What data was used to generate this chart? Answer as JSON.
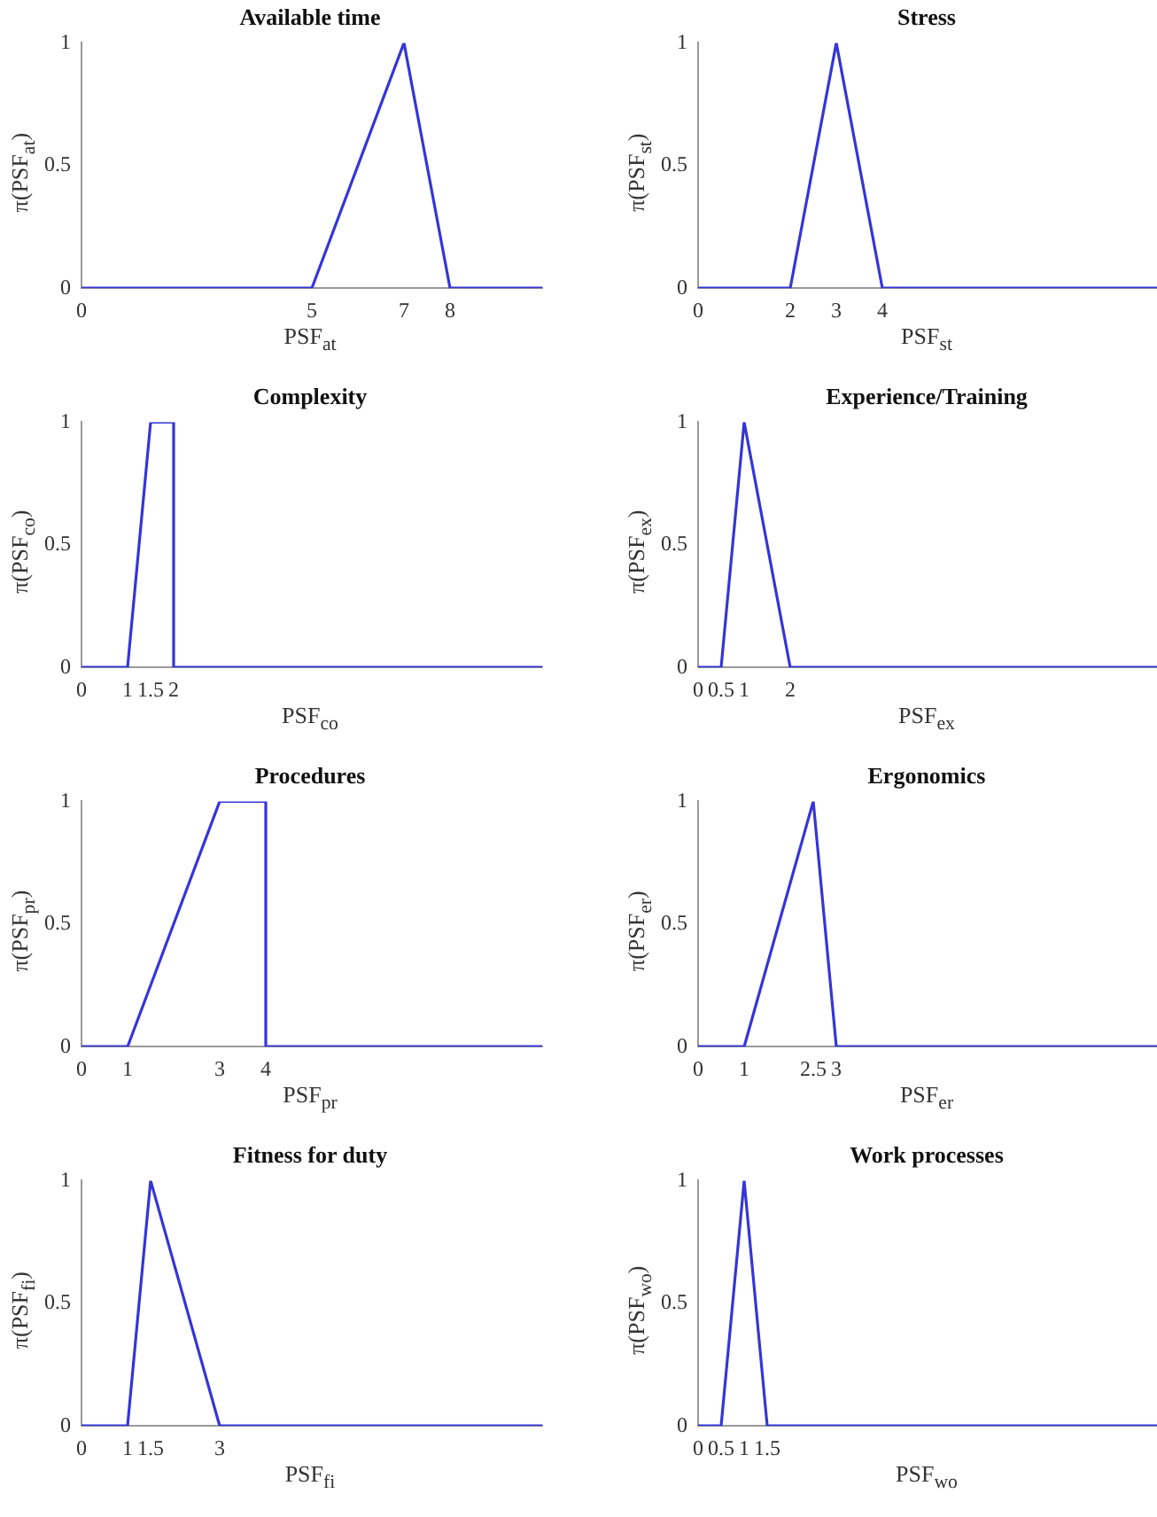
{
  "chart_data": [
    {
      "type": "line",
      "title": "Available time",
      "xlabel": "PSF$_{at}$",
      "ylabel": "π(PSF$_{at}$)",
      "x": [
        0,
        5,
        7,
        8,
        10
      ],
      "values": [
        0,
        0,
        1,
        0,
        0
      ],
      "color": "#3535d8",
      "xlim": [
        0,
        10
      ],
      "xticks": [
        0,
        5,
        7,
        8
      ],
      "ylim": [
        0,
        1
      ],
      "yticks": [
        0,
        0.5,
        1
      ]
    },
    {
      "type": "line",
      "title": "Stress",
      "xlabel": "PSF$_{st}$",
      "ylabel": "π(PSF$_{st}$)",
      "x": [
        0,
        2,
        3,
        4,
        10
      ],
      "values": [
        0,
        0,
        1,
        0,
        0
      ],
      "color": "#3535d8",
      "xlim": [
        0,
        10
      ],
      "xticks": [
        0,
        2,
        3,
        4
      ],
      "ylim": [
        0,
        1
      ],
      "yticks": [
        0,
        0.5,
        1
      ]
    },
    {
      "type": "line",
      "title": "Complexity",
      "xlabel": "PSF$_{co}$",
      "ylabel": "π(PSF$_{co}$)",
      "x": [
        0,
        1,
        1.5,
        2,
        2,
        10
      ],
      "values": [
        0,
        0,
        1,
        1,
        0,
        0
      ],
      "color": "#3535d8",
      "xlim": [
        0,
        10
      ],
      "xticks": [
        0,
        1,
        1.5,
        2
      ],
      "ylim": [
        0,
        1
      ],
      "yticks": [
        0,
        0.5,
        1
      ]
    },
    {
      "type": "line",
      "title": "Experience/Training",
      "xlabel": "PSF$_{ex}$",
      "ylabel": "π(PSF$_{ex}$)",
      "x": [
        0,
        0.5,
        1,
        2,
        10
      ],
      "values": [
        0,
        0,
        1,
        0,
        0
      ],
      "color": "#3535d8",
      "xlim": [
        0,
        10
      ],
      "xticks": [
        0,
        0.5,
        1,
        2
      ],
      "ylim": [
        0,
        1
      ],
      "yticks": [
        0,
        0.5,
        1
      ]
    },
    {
      "type": "line",
      "title": "Procedures",
      "xlabel": "PSF$_{pr}$",
      "ylabel": "π(PSF$_{pr}$)",
      "x": [
        0,
        1,
        3,
        4,
        4,
        10
      ],
      "values": [
        0,
        0,
        1,
        1,
        0,
        0
      ],
      "color": "#3535d8",
      "xlim": [
        0,
        10
      ],
      "xticks": [
        0,
        1,
        3,
        4
      ],
      "ylim": [
        0,
        1
      ],
      "yticks": [
        0,
        0.5,
        1
      ]
    },
    {
      "type": "line",
      "title": "Ergonomics",
      "xlabel": "PSF$_{er}$",
      "ylabel": "π(PSF$_{er}$)",
      "x": [
        0,
        1,
        2.5,
        3,
        10
      ],
      "values": [
        0,
        0,
        1,
        0,
        0
      ],
      "color": "#3535d8",
      "xlim": [
        0,
        10
      ],
      "xticks": [
        0,
        1,
        2.5,
        3
      ],
      "ylim": [
        0,
        1
      ],
      "yticks": [
        0,
        0.5,
        1
      ]
    },
    {
      "type": "line",
      "title": "Fitness for duty",
      "xlabel": "PSF$_{fi}$",
      "ylabel": "π(PSF$_{fi}$)",
      "x": [
        0,
        1,
        1.5,
        3,
        10
      ],
      "values": [
        0,
        0,
        1,
        0,
        0
      ],
      "color": "#3535d8",
      "xlim": [
        0,
        10
      ],
      "xticks": [
        0,
        1,
        1.5,
        3
      ],
      "ylim": [
        0,
        1
      ],
      "yticks": [
        0,
        0.5,
        1
      ]
    },
    {
      "type": "line",
      "title": "Work processes",
      "xlabel": "PSF$_{wo}$",
      "ylabel": "π(PSF$_{wo}$)",
      "x": [
        0,
        0.5,
        1,
        1.5,
        10
      ],
      "values": [
        0,
        0,
        1,
        0,
        0
      ],
      "color": "#3535d8",
      "xlim": [
        0,
        10
      ],
      "xticks": [
        0,
        0.5,
        1,
        1.5
      ],
      "ylim": [
        0,
        1
      ],
      "yticks": [
        0,
        0.5,
        1
      ]
    }
  ]
}
